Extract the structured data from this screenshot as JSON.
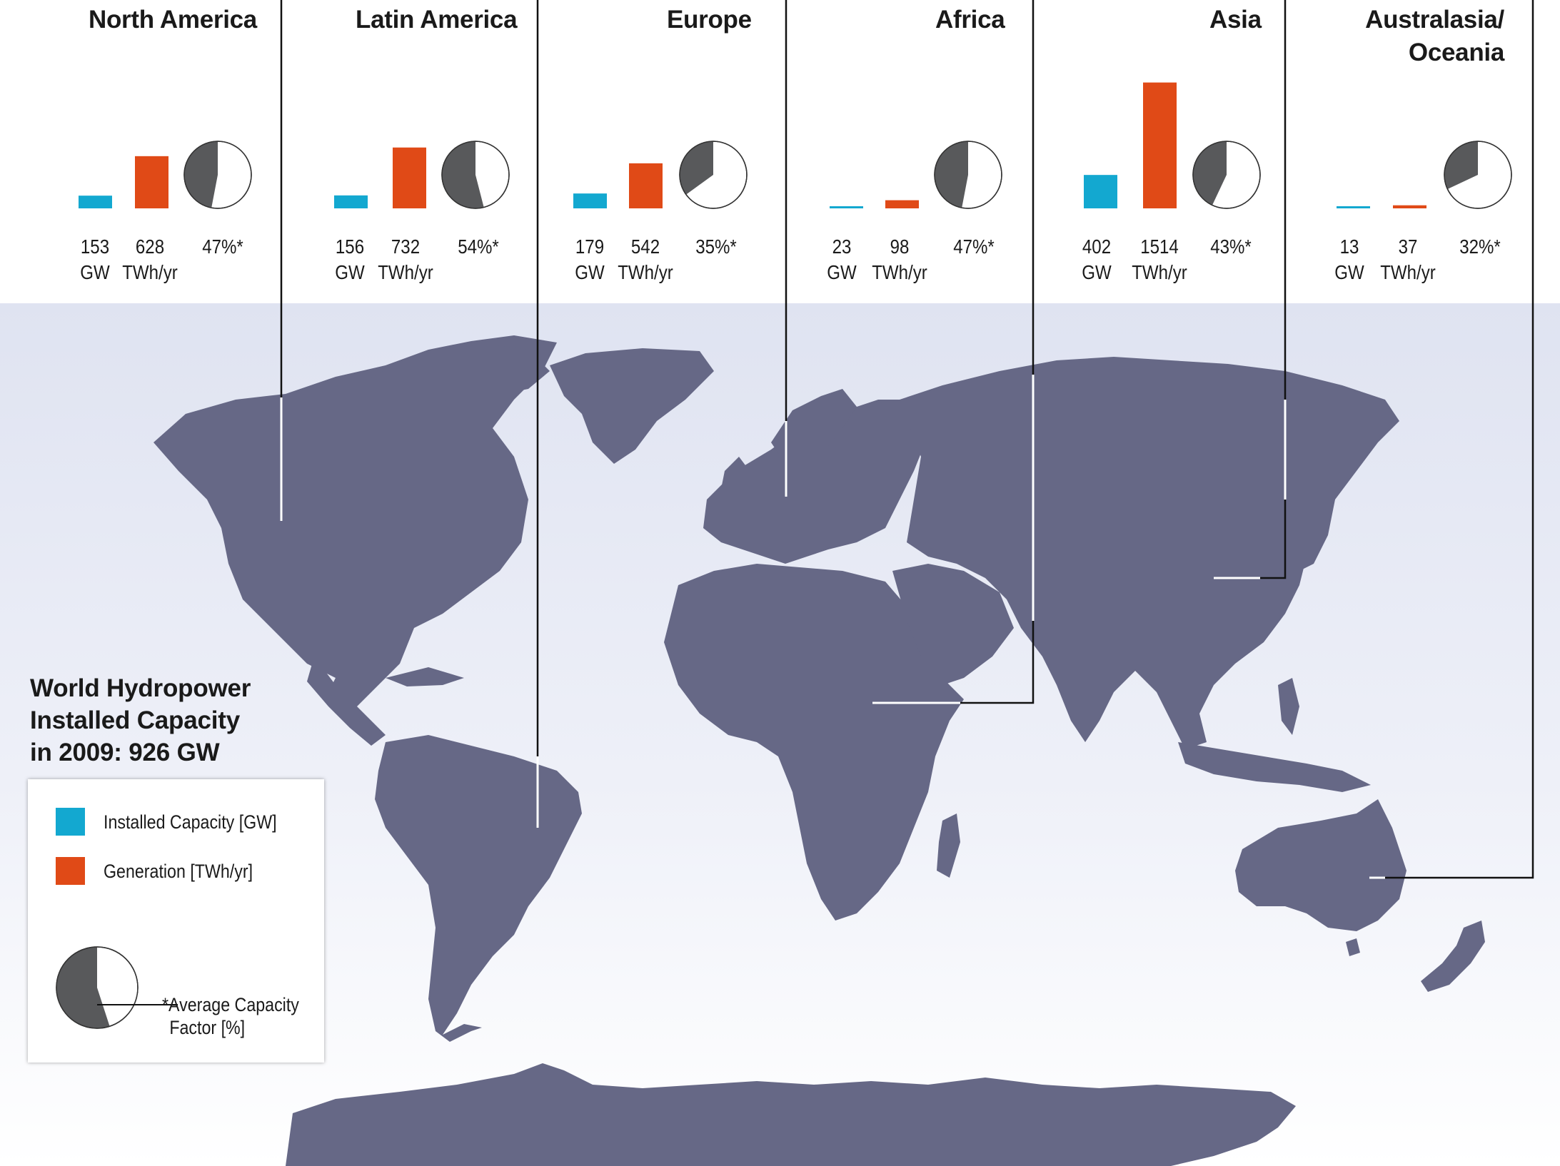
{
  "map": {
    "title_lines": [
      "World Hydropower",
      "Installed Capacity",
      "in 2009: 926 GW"
    ],
    "land_color": "#666886",
    "bar_colors": {
      "capacity": "#13a8d0",
      "generation": "#e04a17"
    },
    "pie_colors": {
      "filled": "#58595b",
      "empty": "#ffffff"
    }
  },
  "regions": [
    {
      "name": "North America",
      "capacity": "153",
      "capacity_unit": "GW",
      "generation": "628",
      "generation_unit": "TWh/yr",
      "capacity_factor": "47%*",
      "cf_value": 47
    },
    {
      "name": "Latin America",
      "capacity": "156",
      "capacity_unit": "GW",
      "generation": "732",
      "generation_unit": "TWh/yr",
      "capacity_factor": "54%*",
      "cf_value": 54
    },
    {
      "name": "Europe",
      "capacity": "179",
      "capacity_unit": "GW",
      "generation": "542",
      "generation_unit": "TWh/yr",
      "capacity_factor": "35%*",
      "cf_value": 35
    },
    {
      "name": "Africa",
      "capacity": "23",
      "capacity_unit": "GW",
      "generation": "98",
      "generation_unit": "TWh/yr",
      "capacity_factor": "47%*",
      "cf_value": 47
    },
    {
      "name": "Asia",
      "capacity": "402",
      "capacity_unit": "GW",
      "generation": "1514",
      "generation_unit": "TWh/yr",
      "capacity_factor": "43%*",
      "cf_value": 43
    },
    {
      "name_lines": [
        "Australasia/",
        "Oceania"
      ],
      "capacity": "13",
      "capacity_unit": "GW",
      "generation": "37",
      "generation_unit": "TWh/yr",
      "capacity_factor": "32%*",
      "cf_value": 32
    }
  ],
  "legend": {
    "capacity_label": "Installed Capacity [GW]",
    "generation_label": "Generation [TWh/yr]",
    "pie_label_lines": [
      "*Average Capacity",
      "Factor [%]"
    ],
    "pie_example_value": 55
  }
}
